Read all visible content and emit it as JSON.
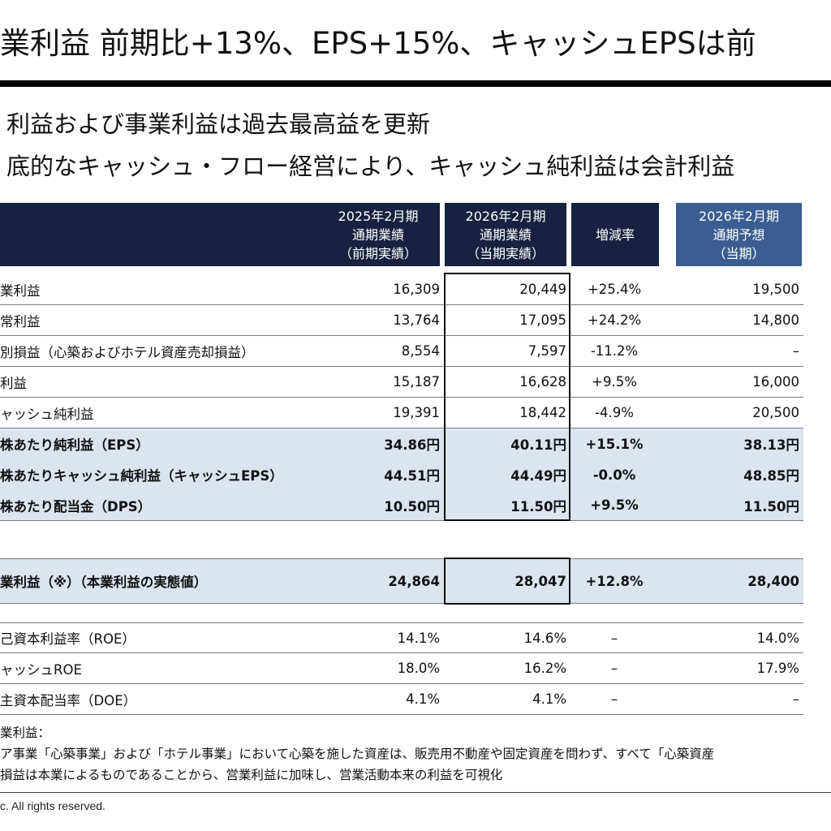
{
  "title": "業利益 前期比+13%、EPS+15%、キャッシュEPSは前",
  "bullets": [
    "利益および事業利益は過去最高益を更新",
    "底的なキャッシュ・フロー経営により、キャッシュ純利益は会計利益"
  ],
  "table": {
    "headers": {
      "prev": [
        "2025年2月期",
        "通期業績",
        "（前期実績）"
      ],
      "curr": [
        "2026年2月期",
        "通期業績",
        "（当期実績）"
      ],
      "rate": [
        "増減率"
      ],
      "forecast": [
        "2026年2月期",
        "通期予想",
        "（当期）"
      ]
    },
    "rows": [
      {
        "label": "業利益",
        "prev": "16,309",
        "curr": "20,449",
        "rate": "+25.4%",
        "forecast": "19,500"
      },
      {
        "label": "常利益",
        "prev": "13,764",
        "curr": "17,095",
        "rate": "+24.2%",
        "forecast": "14,800"
      },
      {
        "label": "別損益（心築およびホテル資産売却損益）",
        "prev": "8,554",
        "curr": "7,597",
        "rate": "-11.2%",
        "forecast": "–"
      },
      {
        "label": "利益",
        "prev": "15,187",
        "curr": "16,628",
        "rate": "+9.5%",
        "forecast": "16,000"
      },
      {
        "label": "ャッシュ純利益",
        "prev": "19,391",
        "curr": "18,442",
        "rate": "-4.9%",
        "forecast": "20,500"
      },
      {
        "label": "株あたり純利益（EPS）",
        "prev": "34.86円",
        "curr": "40.11円",
        "rate": "+15.1%",
        "forecast": "38.13円"
      },
      {
        "label": "株あたりキャッシュ純利益（キャッシュEPS）",
        "prev": "44.51円",
        "curr": "44.49円",
        "rate": "-0.0%",
        "forecast": "48.85円"
      },
      {
        "label": "株あたり配当金（DPS）",
        "prev": "10.50円",
        "curr": "11.50円",
        "rate": "+9.5%",
        "forecast": "11.50円"
      }
    ],
    "business_profit": {
      "label": "業利益（※）（本業利益の実態値）",
      "prev": "24,864",
      "curr": "28,047",
      "rate": "+12.8%",
      "forecast": "28,400"
    },
    "ratios": [
      {
        "label": "己資本利益率（ROE）",
        "prev": "14.1%",
        "curr": "14.6%",
        "rate": "–",
        "forecast": "14.0%"
      },
      {
        "label": "ャッシュROE",
        "prev": "18.0%",
        "curr": "16.2%",
        "rate": "–",
        "forecast": "17.9%"
      },
      {
        "label": "主資本配当率（DOE）",
        "prev": "4.1%",
        "curr": "4.1%",
        "rate": "–",
        "forecast": "–"
      }
    ]
  },
  "notes": [
    "業利益：",
    "ア事業「心築事業」および「ホテル事業」において心築を施した資産は、販売用不動産や固定資産を問わず、すべて「心築資産",
    "損益は本業によるものであることから、営業利益に加味し、営業活動本来の利益を可視化"
  ],
  "copyright": "c. All rights reserved.",
  "colors": {
    "header_navy": "#16223f",
    "header_forecast": "#3b5d90",
    "row_shade": "#dbe4ef"
  }
}
